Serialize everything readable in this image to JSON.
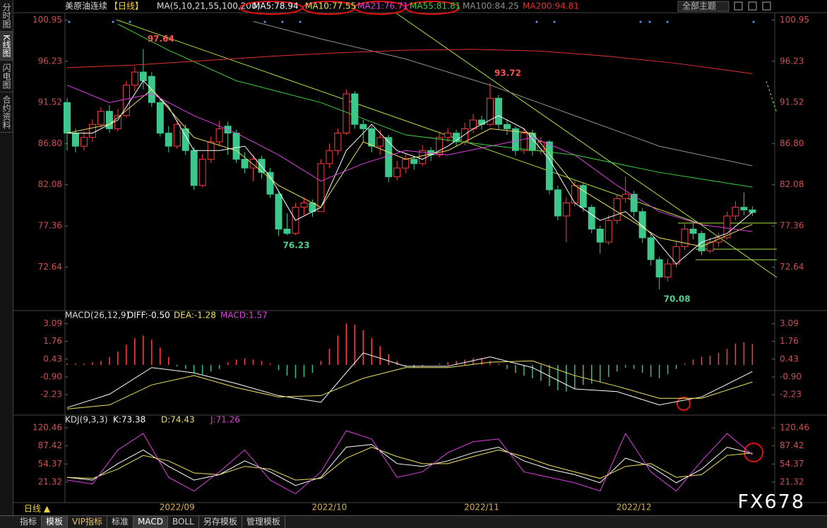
{
  "ui": {
    "side_tabs": [
      "分时图",
      "K线图",
      "闪电图",
      "合约资料"
    ],
    "period": "日线 ▲",
    "bottom_tabs": [
      "指标",
      "模板",
      "VIP指标",
      "标准",
      "MACD",
      "BOLL",
      "另存模板",
      "管理模板"
    ],
    "theme": "全部主题",
    "watermark": "FX678"
  },
  "chart_data": [
    {
      "type": "candlestick",
      "title": "美原油连续",
      "subtitle": "【日线】",
      "legend_label": "MA(5,10,21,55,100,200)",
      "up_color": "#ff3c3c",
      "down_color": "#3cc88c",
      "categories": [
        null,
        null,
        null,
        null,
        null,
        null,
        null,
        null,
        null,
        null,
        null,
        null,
        null,
        "2022/09",
        null,
        null,
        null,
        null,
        null,
        null,
        null,
        null,
        null,
        null,
        null,
        null,
        null,
        null,
        null,
        null,
        null,
        "2022/10",
        null,
        null,
        null,
        null,
        null,
        null,
        null,
        null,
        null,
        null,
        null,
        null,
        null,
        null,
        null,
        null,
        null,
        "2022/11",
        null,
        null,
        null,
        null,
        null,
        null,
        null,
        null,
        null,
        null,
        null,
        null,
        null,
        null,
        null,
        null,
        null,
        "2022/12",
        null,
        null,
        null,
        null,
        null,
        null,
        null,
        null,
        null,
        null,
        null,
        null,
        null,
        null
      ],
      "open": [
        91.5,
        88,
        86.5,
        87.5,
        89,
        90.5,
        88.5,
        90,
        93.5,
        95,
        94.5,
        91.5,
        88,
        86.5,
        88.5,
        86,
        82,
        85,
        87,
        88.8,
        88,
        85,
        84,
        85,
        83.5,
        81,
        77,
        76.5,
        79.5,
        80,
        79,
        84.5,
        86,
        88,
        92.5,
        89,
        88.5,
        86.5,
        87.5,
        83,
        84,
        85,
        84.5,
        86,
        85.5,
        87.5,
        88,
        87,
        88.5,
        89.5,
        89,
        92,
        89,
        88.5,
        86,
        88,
        86,
        87,
        81.5,
        78.5,
        80,
        82,
        79.5,
        77,
        75.5,
        78,
        80.5,
        81,
        79,
        76,
        73.5,
        71.5,
        73,
        75,
        77,
        76.5,
        74.5,
        75.5,
        76,
        78.5,
        79.5,
        79.2
      ],
      "high": [
        92,
        88.5,
        88.2,
        89.6,
        91,
        91.2,
        90.8,
        94,
        95.6,
        97.64,
        95,
        92,
        88.8,
        89.5,
        89,
        86.4,
        85.6,
        87.6,
        89.4,
        89.3,
        88.4,
        85.8,
        85.5,
        85.4,
        84,
        81.4,
        78.8,
        80,
        80.6,
        80.4,
        85,
        86.8,
        88.5,
        93,
        92.8,
        89.5,
        88.8,
        88.4,
        87.8,
        84.8,
        85.6,
        85.4,
        86.6,
        86.4,
        88.2,
        88.6,
        88.4,
        89.2,
        90.2,
        90,
        93.72,
        92.4,
        89.6,
        88.8,
        88.6,
        88.4,
        87.6,
        87.2,
        82,
        80.6,
        82.6,
        82.4,
        79.8,
        77.4,
        78.6,
        81,
        83,
        81.4,
        79.4,
        76.4,
        73.8,
        73.6,
        75.6,
        77.6,
        77.6,
        76.8,
        76,
        76.6,
        79,
        80.2,
        81.2,
        79.6
      ],
      "low": [
        86,
        85.8,
        86,
        87,
        88.6,
        88,
        88.2,
        89.8,
        92.8,
        93,
        91,
        87.6,
        85.8,
        86.2,
        85.5,
        81.5,
        81.8,
        84.6,
        86.5,
        85.5,
        84.6,
        83.4,
        82.5,
        82.8,
        80.6,
        76.23,
        76.3,
        76.3,
        78.6,
        78.4,
        79,
        84,
        85.5,
        87.8,
        88.5,
        87,
        85.8,
        85.5,
        82.4,
        82.6,
        83.4,
        83.8,
        84.2,
        84.8,
        85.2,
        87,
        86.4,
        86.6,
        88,
        88.4,
        88.8,
        88.4,
        87.8,
        85.4,
        85.6,
        85.4,
        85.6,
        81,
        78,
        75.5,
        79.6,
        79,
        76.5,
        74.2,
        75.2,
        77.6,
        80,
        78.4,
        75.4,
        72.8,
        70.08,
        71,
        72.6,
        74.6,
        75.8,
        74,
        74.2,
        75,
        75.8,
        78,
        78.6,
        78.5
      ],
      "close": [
        88,
        86.5,
        87.5,
        89,
        90.5,
        88.5,
        90,
        93.5,
        95,
        94,
        91.5,
        88,
        86.5,
        89,
        86,
        82,
        85,
        87,
        88.5,
        88,
        85,
        84,
        85,
        83.5,
        81,
        77,
        76.5,
        79.5,
        80,
        79,
        84.5,
        86,
        88,
        92.5,
        89,
        88.5,
        86.5,
        87.5,
        83,
        84,
        85,
        84.5,
        86,
        85.5,
        87.5,
        88,
        87,
        88.5,
        89.5,
        89,
        92,
        89,
        88.5,
        86,
        88,
        86,
        87,
        81.5,
        78.5,
        80,
        82,
        79.5,
        77,
        75.5,
        78,
        80.5,
        81,
        79,
        76,
        73.5,
        71.5,
        73,
        75,
        77,
        76.5,
        74.5,
        75.5,
        76,
        78.5,
        79.5,
        79.2,
        78.9
      ],
      "ylim": [
        67.9,
        101.8
      ],
      "yticks": [
        100.95,
        96.23,
        91.52,
        {
          "value": 86.8,
          "label": "86.80"
        },
        82.08,
        77.36,
        72.64
      ],
      "series": [
        {
          "name": "MA5:78.94",
          "color": "#ffffff",
          "x": [
            0,
            3,
            6,
            9,
            12,
            15,
            18,
            21,
            24,
            27,
            30,
            33,
            36,
            39,
            42,
            45,
            48,
            51,
            54,
            57,
            60,
            63,
            66,
            69,
            72,
            75,
            78,
            81
          ],
          "values": [
            88,
            88,
            89.5,
            94,
            91,
            86,
            86,
            86.5,
            83,
            78,
            79.5,
            86,
            89,
            86,
            85,
            86.5,
            88.5,
            90,
            88.5,
            85,
            80,
            78,
            79,
            76.5,
            73,
            75.5,
            76.5,
            78.94
          ]
        },
        {
          "name": "MA10:77.55",
          "color": "#f0e060",
          "x": [
            0,
            5,
            10,
            15,
            20,
            25,
            30,
            35,
            40,
            45,
            50,
            55,
            60,
            65,
            70,
            75,
            81
          ],
          "values": [
            88,
            89,
            93,
            87.5,
            86,
            82,
            79.5,
            87,
            85,
            86,
            88.5,
            88,
            82,
            79,
            76,
            75,
            77.55
          ]
        },
        {
          "name": "MA21:76.71",
          "color": "#e040e0",
          "x": [
            0,
            5,
            10,
            15,
            20,
            25,
            30,
            35,
            40,
            45,
            50,
            55,
            60,
            65,
            70,
            75,
            81
          ],
          "values": [
            93.5,
            91.5,
            92.5,
            90,
            88,
            85.5,
            82.5,
            84.5,
            86,
            85.5,
            86.5,
            87.5,
            85.5,
            82,
            79,
            77.5,
            76.71
          ]
        },
        {
          "name": "MA55:81.81",
          "color": "#40d040",
          "x": [
            6,
            12,
            20,
            30,
            40,
            50,
            60,
            70,
            81
          ],
          "values": [
            100.5,
            97.5,
            94,
            91.5,
            87.8,
            86.6,
            85.5,
            83.5,
            81.81
          ]
        },
        {
          "name": "MA100:84.25",
          "color": "#909090",
          "x": [
            22,
            30,
            40,
            50,
            60,
            70,
            81
          ],
          "values": [
            100.8,
            98.8,
            96.5,
            93.5,
            90,
            86.5,
            84.25
          ]
        },
        {
          "name": "MA200:94.81",
          "color": "#e03030",
          "x": [
            0,
            8,
            16,
            24,
            32,
            40,
            48,
            56,
            64,
            72,
            81
          ],
          "values": [
            95.5,
            95.8,
            96.3,
            96.8,
            97.2,
            97.5,
            97.6,
            97.4,
            96.8,
            96,
            94.81
          ]
        }
      ]
    },
    {
      "type": "macd",
      "title": "MACD(26,12,9)",
      "up_color": "#ff4040",
      "down_color": "#30c080",
      "histogram": {
        "name": "MACD:1.57",
        "color": "#e040e0",
        "values": [
          0.1,
          0.1,
          0.1,
          0.2,
          0.3,
          0.6,
          1.0,
          1.5,
          2.0,
          2.2,
          1.9,
          1.3,
          0.6,
          -0.1,
          -0.3,
          -0.6,
          -0.7,
          -0.5,
          -0.3,
          0.2,
          0.4,
          0.5,
          0.4,
          0.3,
          0.1,
          -0.4,
          -0.8,
          -1.0,
          -0.9,
          -0.6,
          0.3,
          1.2,
          2.2,
          3.1,
          3.0,
          2.6,
          2.0,
          1.4,
          0.8,
          0.3,
          -0.1,
          -0.2,
          -0.1,
          0,
          0.1,
          0.2,
          0.3,
          0.4,
          0.5,
          0.5,
          0.3,
          0.1,
          -0.3,
          -0.6,
          -0.8,
          -1.0,
          -1.2,
          -1.6,
          -1.9,
          -2.0,
          -1.8,
          -1.5,
          -1.4,
          -1.3,
          -0.9,
          -0.5,
          -0.2,
          -0.3,
          -0.6,
          -0.9,
          -1.0,
          -0.7,
          -0.3,
          0.1,
          0.4,
          0.6,
          0.7,
          0.9,
          1.2,
          1.6,
          1.7,
          1.57
        ]
      },
      "ylim": [
        -3.6,
        3.7
      ],
      "yticks": [
        3.09,
        1.76,
        0.43,
        {
          "value": -0.9,
          "label": "-0.90"
        },
        -2.23
      ],
      "series": [
        {
          "name": "DIFF:-0.50",
          "color": "#ffffff",
          "x": [
            0,
            5,
            10,
            15,
            20,
            25,
            30,
            35,
            40,
            45,
            50,
            55,
            60,
            65,
            70,
            75,
            81
          ],
          "values": [
            -3.2,
            -2.2,
            -0.2,
            -0.6,
            -1.4,
            -2.3,
            -2.8,
            0.9,
            -0.1,
            -0.1,
            0.6,
            -0.2,
            -1.8,
            -2.0,
            -3.0,
            -2.4,
            -0.5
          ]
        },
        {
          "name": "DEA:-1.28",
          "color": "#f0e060",
          "x": [
            0,
            5,
            10,
            15,
            20,
            25,
            30,
            35,
            40,
            45,
            50,
            55,
            60,
            65,
            70,
            75,
            81
          ],
          "values": [
            -3.3,
            -3.0,
            -1.5,
            -0.8,
            -1.7,
            -2.4,
            -2.3,
            -1.0,
            -0.2,
            -0.2,
            0.2,
            0.3,
            -0.8,
            -1.6,
            -2.5,
            -2.5,
            -1.28
          ]
        }
      ]
    },
    {
      "type": "line",
      "title": "KDJ(9,3,3)",
      "ylim": [
        -13.5,
        138.5
      ],
      "yticks": [
        120.46,
        87.42,
        54.37,
        21.32
      ],
      "series": [
        {
          "name": "K:73.38",
          "color": "#ffffff",
          "x": [
            0,
            3,
            6,
            9,
            12,
            15,
            18,
            21,
            24,
            27,
            30,
            33,
            36,
            39,
            42,
            45,
            48,
            51,
            54,
            57,
            60,
            63,
            66,
            69,
            72,
            75,
            78,
            81
          ],
          "values": [
            30,
            25,
            55,
            80,
            50,
            25,
            35,
            60,
            40,
            15,
            30,
            85,
            90,
            55,
            50,
            60,
            75,
            85,
            60,
            45,
            35,
            20,
            65,
            50,
            20,
            45,
            85,
            73.38
          ]
        },
        {
          "name": "D:74.43",
          "color": "#f0e060",
          "x": [
            0,
            3,
            6,
            9,
            12,
            15,
            18,
            21,
            24,
            27,
            30,
            33,
            36,
            39,
            42,
            45,
            48,
            51,
            54,
            57,
            60,
            63,
            66,
            69,
            72,
            75,
            78,
            81
          ],
          "values": [
            30,
            28,
            45,
            70,
            60,
            38,
            35,
            50,
            45,
            25,
            28,
            65,
            85,
            68,
            55,
            55,
            68,
            80,
            68,
            52,
            40,
            28,
            50,
            55,
            30,
            35,
            70,
            74.43
          ]
        },
        {
          "name": "J:71.26",
          "color": "#e040e0",
          "x": [
            0,
            3,
            6,
            9,
            12,
            15,
            18,
            21,
            24,
            27,
            30,
            33,
            36,
            39,
            42,
            45,
            48,
            51,
            54,
            57,
            60,
            63,
            66,
            69,
            72,
            75,
            78,
            81
          ],
          "values": [
            25,
            18,
            80,
            110,
            30,
            5,
            40,
            80,
            25,
            0,
            40,
            115,
            100,
            30,
            40,
            75,
            95,
            100,
            40,
            30,
            20,
            5,
            110,
            40,
            5,
            60,
            110,
            71.26
          ]
        }
      ]
    }
  ]
}
